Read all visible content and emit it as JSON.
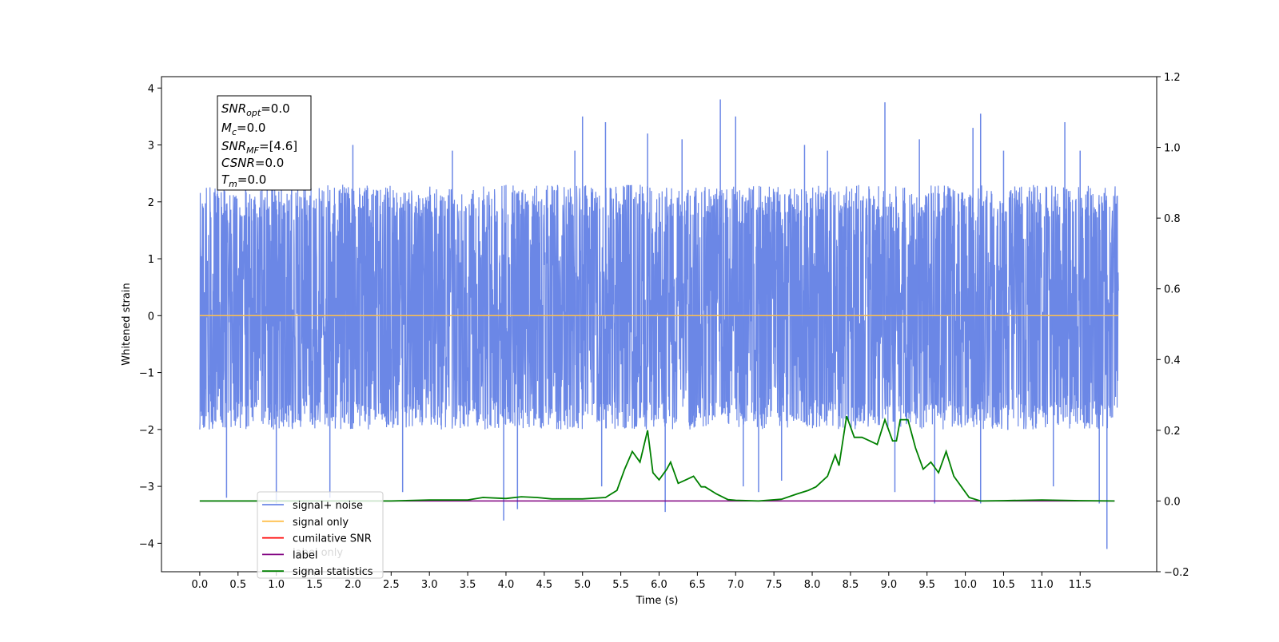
{
  "chart_data": {
    "type": "line",
    "xlabel": "Time (s)",
    "ylabel": "Whitened strain",
    "xlim": [
      -0.5,
      12.5
    ],
    "ylim": [
      -4.5,
      4.2
    ],
    "y2lim": [
      -0.2,
      1.2
    ],
    "x_ticks": [
      "0.0",
      "0.5",
      "1.0",
      "1.5",
      "2.0",
      "2.5",
      "3.0",
      "3.5",
      "4.0",
      "4.5",
      "5.0",
      "5.5",
      "6.0",
      "6.5",
      "7.0",
      "7.5",
      "8.0",
      "8.5",
      "9.0",
      "9.5",
      "10.0",
      "10.5",
      "11.0",
      "11.5"
    ],
    "y_ticks": [
      "4",
      "3",
      "2",
      "1",
      "0",
      "−1",
      "−2",
      "−3",
      "−4"
    ],
    "y2_ticks": [
      "1.2",
      "1.0",
      "0.8",
      "0.6",
      "0.4",
      "0.2",
      "0.0",
      "−0.2"
    ],
    "annotation": [
      {
        "base": "SNR",
        "sub": "opt",
        "rest": "=0.0"
      },
      {
        "base": "M",
        "sub": "c",
        "rest": "=0.0"
      },
      {
        "base": "SNR",
        "sub": "MF",
        "rest": "=[4.6]"
      },
      {
        "base": "CSNR",
        "sub": "",
        "rest": "=0.0"
      },
      {
        "base": "T",
        "sub": "m",
        "rest": "=0.0"
      }
    ],
    "legend": [
      {
        "label": "signal+ noise",
        "color": "#6b87e6"
      },
      {
        "label": "signal only",
        "color": "#ffc04d"
      },
      {
        "label": "cumilative SNR",
        "color": "#ff0000"
      },
      {
        "label": "label",
        "color": "#800080"
      },
      {
        "label": "signal statistics",
        "color": "#008000"
      }
    ],
    "legend_placement": "lower-left",
    "legend_hidden_text": "label only",
    "series": [
      {
        "name": "signal+ noise",
        "axis": "left",
        "color": "#6b87e6",
        "x_range": [
          0.0,
          12.0
        ],
        "band": [
          -2.0,
          2.3
        ],
        "spikes": [
          [
            0.35,
            -3.2
          ],
          [
            0.6,
            2.9
          ],
          [
            1.0,
            -3.3
          ],
          [
            1.2,
            2.9
          ],
          [
            1.7,
            -3.2
          ],
          [
            2.0,
            3.0
          ],
          [
            2.65,
            -3.1
          ],
          [
            3.3,
            2.9
          ],
          [
            3.97,
            -3.6
          ],
          [
            4.15,
            -3.4
          ],
          [
            4.9,
            2.9
          ],
          [
            5.0,
            3.5
          ],
          [
            5.3,
            3.4
          ],
          [
            5.25,
            -3.0
          ],
          [
            5.85,
            3.2
          ],
          [
            6.08,
            -3.45
          ],
          [
            6.3,
            3.1
          ],
          [
            6.8,
            3.8
          ],
          [
            7.0,
            3.5
          ],
          [
            7.1,
            -3.0
          ],
          [
            7.3,
            -3.1
          ],
          [
            7.6,
            -2.9
          ],
          [
            7.9,
            3.0
          ],
          [
            8.2,
            2.9
          ],
          [
            8.95,
            3.75
          ],
          [
            9.08,
            -3.1
          ],
          [
            9.4,
            3.1
          ],
          [
            9.6,
            -3.3
          ],
          [
            10.1,
            3.3
          ],
          [
            10.2,
            3.55
          ],
          [
            10.2,
            -3.3
          ],
          [
            10.5,
            2.9
          ],
          [
            11.3,
            3.4
          ],
          [
            11.15,
            -3.0
          ],
          [
            11.5,
            2.9
          ],
          [
            11.75,
            -3.3
          ],
          [
            11.85,
            -4.1
          ]
        ]
      },
      {
        "name": "signal only",
        "axis": "left",
        "color": "#ffc04d",
        "x": [
          0.0,
          12.0
        ],
        "values": [
          0.0,
          0.0
        ]
      },
      {
        "name": "label",
        "axis": "right",
        "color": "#800080",
        "x": [
          0.0,
          11.95
        ],
        "values": [
          0.0,
          0.0
        ]
      },
      {
        "name": "signal statistics",
        "axis": "right",
        "color": "#008000",
        "x": [
          0.0,
          2.5,
          3.0,
          3.5,
          3.7,
          4.0,
          4.2,
          4.4,
          4.6,
          5.0,
          5.3,
          5.45,
          5.55,
          5.65,
          5.75,
          5.85,
          5.92,
          6.0,
          6.1,
          6.15,
          6.25,
          6.35,
          6.45,
          6.55,
          6.6,
          6.75,
          6.9,
          7.0,
          7.3,
          7.6,
          7.8,
          7.95,
          8.05,
          8.2,
          8.3,
          8.35,
          8.45,
          8.55,
          8.65,
          8.75,
          8.85,
          8.95,
          9.05,
          9.1,
          9.15,
          9.25,
          9.35,
          9.45,
          9.55,
          9.65,
          9.75,
          9.85,
          9.95,
          10.05,
          10.2,
          10.5,
          11.0,
          11.5,
          11.95
        ],
        "values": [
          0.0,
          0.0,
          0.003,
          0.003,
          0.01,
          0.007,
          0.012,
          0.01,
          0.006,
          0.006,
          0.01,
          0.03,
          0.09,
          0.14,
          0.11,
          0.2,
          0.08,
          0.06,
          0.09,
          0.11,
          0.05,
          0.06,
          0.07,
          0.04,
          0.04,
          0.02,
          0.004,
          0.002,
          0.0,
          0.005,
          0.02,
          0.03,
          0.04,
          0.07,
          0.13,
          0.1,
          0.24,
          0.18,
          0.18,
          0.17,
          0.16,
          0.23,
          0.17,
          0.17,
          0.23,
          0.23,
          0.15,
          0.09,
          0.11,
          0.08,
          0.14,
          0.07,
          0.04,
          0.01,
          0.0,
          0.001,
          0.003,
          0.001,
          0.0
        ]
      }
    ]
  }
}
